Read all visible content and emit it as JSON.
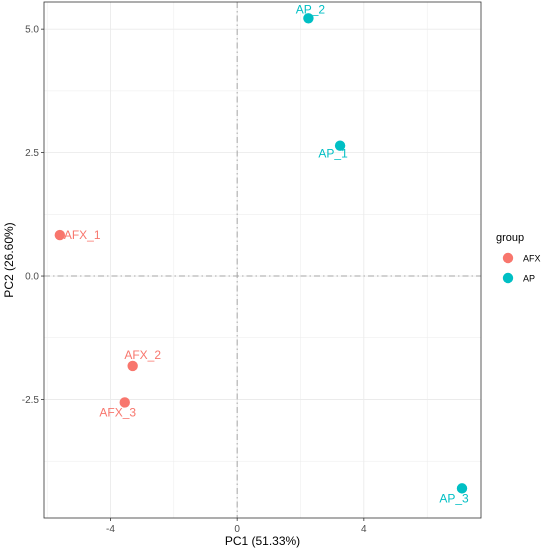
{
  "chart_data": {
    "type": "scatter",
    "title": "",
    "xlabel": "PC1 (51.33%)",
    "ylabel": "PC2 (26.60%)",
    "xlim": [
      -6.1,
      7.7
    ],
    "ylim": [
      -4.9,
      5.55
    ],
    "xticks": [
      -4,
      0,
      4
    ],
    "xtick_labels": [
      "-4",
      "0",
      "4"
    ],
    "yticks": [
      -2.5,
      0,
      2.5,
      5
    ],
    "ytick_labels": [
      "-2.5",
      "0.0",
      "2.5",
      "5.0"
    ],
    "grid": true,
    "reference_lines": {
      "x": 0,
      "y": 0,
      "style": "dash-dot"
    },
    "legend": {
      "title": "group",
      "position": "right",
      "entries": [
        {
          "name": "AFX",
          "color": "#F8766D"
        },
        {
          "name": "AP",
          "color": "#00BFC4"
        }
      ]
    },
    "series": [
      {
        "name": "AFX",
        "color": "#F8766D",
        "points": [
          {
            "label": "AFX_1",
            "x": -5.6,
            "y": 0.83
          },
          {
            "label": "AFX_2",
            "x": -3.3,
            "y": -1.82
          },
          {
            "label": "AFX_3",
            "x": -3.55,
            "y": -2.56
          }
        ]
      },
      {
        "name": "AP",
        "color": "#00BFC4",
        "points": [
          {
            "label": "AP_2",
            "x": 2.25,
            "y": 5.22
          },
          {
            "label": "AP_1",
            "x": 3.25,
            "y": 2.64
          },
          {
            "label": "AP_3",
            "x": 7.1,
            "y": -4.3
          }
        ]
      }
    ]
  }
}
